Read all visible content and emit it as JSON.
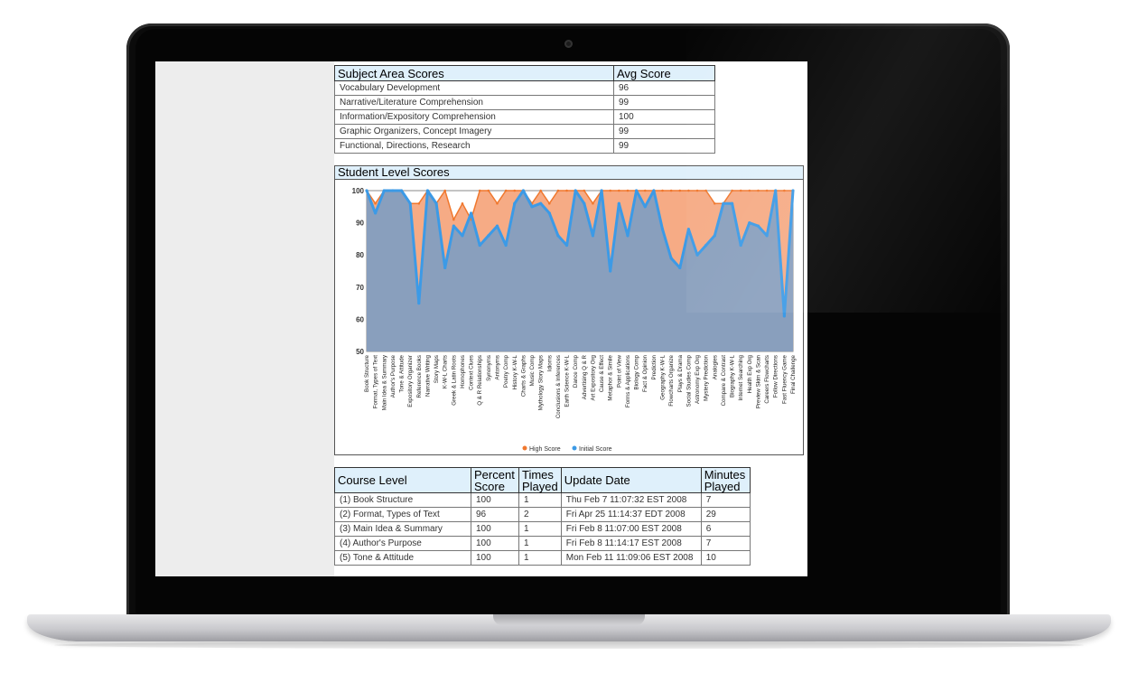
{
  "subject_table": {
    "headers": [
      "Subject Area Scores",
      "Avg Score"
    ],
    "rows": [
      [
        "Vocabulary Development",
        "96"
      ],
      [
        "Narrative/Literature Comprehension",
        "99"
      ],
      [
        "Information/Expository Comprehension",
        "100"
      ],
      [
        "Graphic Organizers, Concept Imagery",
        "99"
      ],
      [
        "Functional, Directions, Research",
        "99"
      ]
    ]
  },
  "chart_data": {
    "type": "area",
    "title": "Student Level Scores",
    "ylim": [
      50,
      100
    ],
    "yticks": [
      50,
      60,
      70,
      80,
      90,
      100
    ],
    "legend_position": "bottom-center",
    "categories": [
      "Book Structure",
      "Format, Types of Text",
      "Main Idea & Summary",
      "Author's Purpose",
      "Tone & Attitude",
      "Expository Organizer",
      "Reference Books",
      "Narrative Writing",
      "Story Maps",
      "K-W-L Charts",
      "Greek & Latin Roots",
      "Homophones",
      "Context Clues",
      "Q & R Relationships",
      "Synonyms",
      "Antonyms",
      "Poetry Comp",
      "History K-W-L",
      "Charts & Graphs",
      "Music Comp",
      "Mythology Story Maps",
      "Idioms",
      "Conclusions & Inferences",
      "Earth Science K-W-L",
      "Dance Comp",
      "Advertising Q & R",
      "Art Expository Org",
      "Cause & Effect",
      "Metaphor & Simile",
      "Point of View",
      "Forms & Applications",
      "Biology Comp",
      "Fact & Opinion",
      "Prediction",
      "Geography K-W-L",
      "Flowcharts Organize",
      "Plays & Drama",
      "Social Studies Comp",
      "Astronomy Exp Org",
      "Mystery Prediction",
      "Analogies",
      "Compare & Contrast",
      "Biography K-W-L",
      "Internet Searching",
      "Health Exp Org",
      "Preview Skim & Scan",
      "Careers Flowcharts",
      "Follow Directions",
      "Fast Fluency Game",
      "Final Challenge"
    ],
    "series": [
      {
        "name": "High Score",
        "color": "#f0782e",
        "values": [
          100,
          96,
          100,
          100,
          100,
          96,
          96,
          100,
          96,
          100,
          91,
          96,
          91,
          100,
          100,
          96,
          100,
          100,
          100,
          96,
          100,
          96,
          100,
          100,
          100,
          100,
          96,
          100,
          100,
          100,
          100,
          100,
          100,
          100,
          100,
          100,
          100,
          100,
          100,
          100,
          96,
          96,
          100,
          100,
          100,
          100,
          100,
          100,
          100,
          100
        ]
      },
      {
        "name": "Initial Score",
        "color": "#3c9ae6",
        "values": [
          100,
          93,
          100,
          100,
          100,
          96,
          65,
          100,
          96,
          76,
          89,
          86,
          93,
          83,
          86,
          89,
          83,
          96,
          100,
          95,
          96,
          93,
          86,
          83,
          100,
          96,
          86,
          100,
          75,
          96,
          86,
          100,
          95,
          100,
          88,
          79,
          76,
          88,
          80,
          83,
          86,
          96,
          96,
          83,
          90,
          89,
          86,
          100,
          61,
          100
        ]
      }
    ]
  },
  "course_table": {
    "headers": [
      "Course Level",
      "Percent Score",
      "Times Played",
      "Update Date",
      "Minutes Played"
    ],
    "rows": [
      [
        "(1) Book Structure",
        "100",
        "1",
        "Thu Feb 7 11:07:32 EST 2008",
        "7"
      ],
      [
        "(2) Format, Types of Text",
        "96",
        "2",
        "Fri Apr 25 11:14:37 EDT 2008",
        "29"
      ],
      [
        "(3) Main Idea & Summary",
        "100",
        "1",
        "Fri Feb 8 11:07:00 EST 2008",
        "6"
      ],
      [
        "(4) Author's Purpose",
        "100",
        "1",
        "Fri Feb 8 11:14:17 EST 2008",
        "7"
      ],
      [
        "(5) Tone & Attitude",
        "100",
        "1",
        "Mon Feb 11 11:09:06 EST 2008",
        "10"
      ]
    ]
  }
}
